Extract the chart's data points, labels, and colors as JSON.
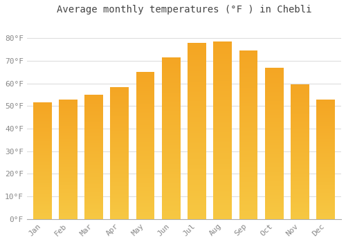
{
  "title": "Average monthly temperatures (°F ) in Chebli",
  "months": [
    "Jan",
    "Feb",
    "Mar",
    "Apr",
    "May",
    "Jun",
    "Jul",
    "Aug",
    "Sep",
    "Oct",
    "Nov",
    "Dec"
  ],
  "values": [
    51.5,
    53.0,
    55.0,
    58.5,
    65.0,
    71.5,
    78.0,
    78.5,
    74.5,
    67.0,
    59.5,
    53.0
  ],
  "bar_color": "#F5A623",
  "bar_color_light": "#FFCC55",
  "ylim": [
    0,
    88
  ],
  "yticks": [
    0,
    10,
    20,
    30,
    40,
    50,
    60,
    70,
    80
  ],
  "ytick_labels": [
    "0°F",
    "10°F",
    "20°F",
    "30°F",
    "40°F",
    "50°F",
    "60°F",
    "70°F",
    "80°F"
  ],
  "background_color": "#FFFFFF",
  "grid_color": "#DDDDDD",
  "title_fontsize": 10,
  "tick_fontsize": 8,
  "bar_width": 0.72
}
